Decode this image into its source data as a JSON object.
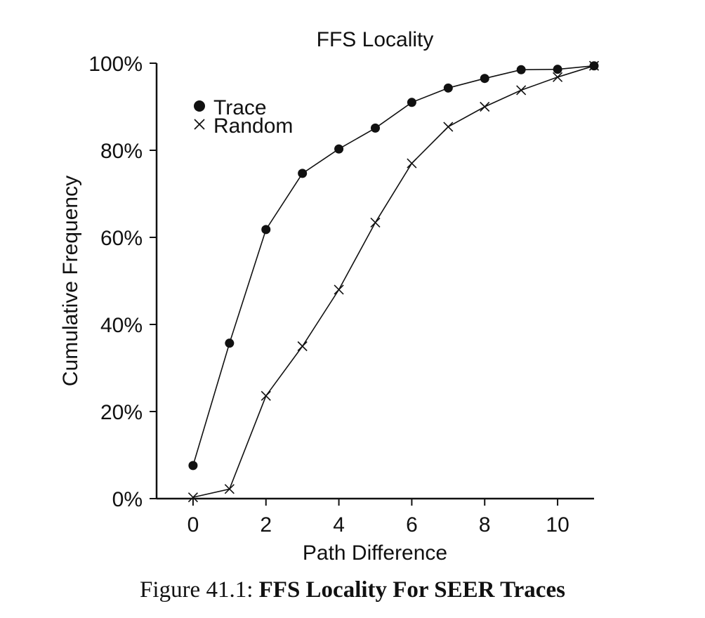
{
  "chart_data": {
    "type": "line",
    "title": "FFS Locality",
    "xlabel": "Path Difference",
    "ylabel": "Cumulative Frequency",
    "xlim": [
      -1,
      11
    ],
    "ylim": [
      0,
      100
    ],
    "xticks": [
      0,
      2,
      4,
      6,
      8,
      10
    ],
    "xtick_labels": [
      "0",
      "2",
      "4",
      "6",
      "8",
      "10"
    ],
    "yticks": [
      0,
      20,
      40,
      60,
      80,
      100
    ],
    "ytick_labels": [
      "0%",
      "20%",
      "40%",
      "60%",
      "80%",
      "100%"
    ],
    "grid": false,
    "legend_position": "top-left",
    "x": [
      0,
      1,
      2,
      3,
      4,
      5,
      6,
      7,
      8,
      9,
      10,
      11
    ],
    "series": [
      {
        "name": "Trace",
        "marker": "filled-circle",
        "values": [
          7.6,
          35.7,
          61.8,
          74.7,
          80.3,
          85.1,
          91.0,
          94.3,
          96.5,
          98.5,
          98.6,
          99.4
        ]
      },
      {
        "name": "Random",
        "marker": "x",
        "values": [
          0.3,
          2.2,
          23.6,
          35.0,
          48.0,
          63.4,
          77.0,
          85.4,
          90.0,
          93.8,
          96.8,
          99.4
        ]
      }
    ]
  },
  "caption": {
    "label": "Figure 41.1:",
    "title": "FFS Locality For SEER Traces"
  }
}
